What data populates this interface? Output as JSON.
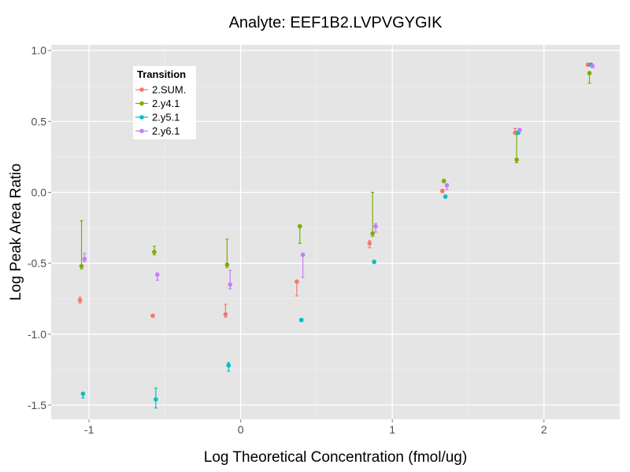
{
  "chart_data": {
    "type": "scatter",
    "title": "Analyte: EEF1B2.LVPVGYGIK",
    "xlabel": "Log Theoretical Concentration (fmol/ug)",
    "ylabel": "Log Peak Area Ratio",
    "xlim": [
      -1.25,
      2.5
    ],
    "ylim": [
      -1.6,
      1.04
    ],
    "x_ticks": [
      -1,
      0,
      1,
      2
    ],
    "x_tick_labels": [
      "-1",
      "0",
      "1",
      "2"
    ],
    "y_ticks": [
      1.0,
      0.5,
      0.0,
      -0.5,
      -1.0,
      -1.5
    ],
    "y_tick_labels": [
      "1.0",
      "0.5",
      "0.0",
      "-0.5",
      "-1.0",
      "-1.5"
    ],
    "grid": true,
    "legend": {
      "title": "Transition",
      "position": "top-left"
    },
    "series": [
      {
        "name": "2.SUM.",
        "color": "#f8766d",
        "points": [
          {
            "x": -1.06,
            "y": -0.76,
            "lo": -0.78,
            "hi": -0.74
          },
          {
            "x": -0.58,
            "y": -0.87,
            "lo": -0.88,
            "hi": -0.86
          },
          {
            "x": -0.1,
            "y": -0.86,
            "lo": -0.88,
            "hi": -0.79
          },
          {
            "x": 0.37,
            "y": -0.63,
            "lo": -0.73,
            "hi": -0.62
          },
          {
            "x": 0.85,
            "y": -0.36,
            "lo": -0.39,
            "hi": -0.34
          },
          {
            "x": 1.33,
            "y": 0.01,
            "lo": 0.0,
            "hi": 0.02
          },
          {
            "x": 1.81,
            "y": 0.42,
            "lo": 0.41,
            "hi": 0.45
          },
          {
            "x": 2.29,
            "y": 0.9,
            "lo": 0.89,
            "hi": 0.91
          }
        ]
      },
      {
        "name": "2.y4.1",
        "color": "#7cae00",
        "points": [
          {
            "x": -1.05,
            "y": -0.52,
            "lo": -0.54,
            "hi": -0.2
          },
          {
            "x": -0.57,
            "y": -0.42,
            "lo": -0.44,
            "hi": -0.38
          },
          {
            "x": -0.09,
            "y": -0.51,
            "lo": -0.53,
            "hi": -0.33
          },
          {
            "x": 0.39,
            "y": -0.24,
            "lo": -0.36,
            "hi": -0.23
          },
          {
            "x": 0.87,
            "y": -0.29,
            "lo": -0.31,
            "hi": 0.0
          },
          {
            "x": 1.34,
            "y": 0.08,
            "lo": 0.07,
            "hi": 0.09
          },
          {
            "x": 1.82,
            "y": 0.23,
            "lo": 0.21,
            "hi": 0.43
          },
          {
            "x": 2.3,
            "y": 0.84,
            "lo": 0.77,
            "hi": 0.85
          }
        ]
      },
      {
        "name": "2.y5.1",
        "color": "#00bfc4",
        "points": [
          {
            "x": -1.04,
            "y": -1.42,
            "lo": -1.45,
            "hi": -1.41
          },
          {
            "x": -0.56,
            "y": -1.46,
            "lo": -1.52,
            "hi": -1.38
          },
          {
            "x": -0.08,
            "y": -1.22,
            "lo": -1.26,
            "hi": -1.2
          },
          {
            "x": 0.4,
            "y": -0.9,
            "lo": -0.91,
            "hi": -0.89
          },
          {
            "x": 0.88,
            "y": -0.49,
            "lo": -0.5,
            "hi": -0.48
          },
          {
            "x": 1.35,
            "y": -0.03,
            "lo": -0.04,
            "hi": -0.02
          },
          {
            "x": 1.83,
            "y": 0.42,
            "lo": 0.41,
            "hi": 0.43
          },
          {
            "x": 2.31,
            "y": 0.9,
            "lo": 0.89,
            "hi": 0.91
          }
        ]
      },
      {
        "name": "2.y6.1",
        "color": "#c77cff",
        "points": [
          {
            "x": -1.03,
            "y": -0.47,
            "lo": -0.49,
            "hi": -0.43
          },
          {
            "x": -0.55,
            "y": -0.58,
            "lo": -0.62,
            "hi": -0.57
          },
          {
            "x": -0.07,
            "y": -0.65,
            "lo": -0.68,
            "hi": -0.55
          },
          {
            "x": 0.41,
            "y": -0.44,
            "lo": -0.6,
            "hi": -0.43
          },
          {
            "x": 0.89,
            "y": -0.24,
            "lo": -0.28,
            "hi": -0.22
          },
          {
            "x": 1.36,
            "y": 0.05,
            "lo": 0.02,
            "hi": 0.06
          },
          {
            "x": 1.84,
            "y": 0.44,
            "lo": 0.43,
            "hi": 0.45
          },
          {
            "x": 2.32,
            "y": 0.89,
            "lo": 0.88,
            "hi": 0.9
          }
        ]
      }
    ]
  }
}
